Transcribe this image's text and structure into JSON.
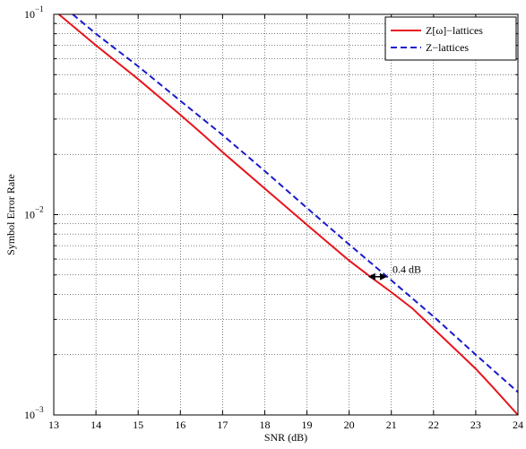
{
  "chart_data": {
    "type": "line",
    "title": "",
    "xlabel": "SNR (dB)",
    "ylabel": "Symbol Error Rate",
    "xlim": [
      13,
      24
    ],
    "ylim": [
      0.001,
      0.1
    ],
    "yscale": "log",
    "grid": true,
    "grid_style": "dotted",
    "legend_position": "top-right",
    "x_ticks": [
      13,
      14,
      15,
      16,
      17,
      18,
      19,
      20,
      21,
      22,
      23,
      24
    ],
    "x_tick_labels": [
      "13",
      "14",
      "15",
      "16",
      "17",
      "18",
      "19",
      "20",
      "21",
      "22",
      "23",
      "24"
    ],
    "y_ticks": [
      {
        "value": 0.001,
        "base": "10",
        "exp": "−3"
      },
      {
        "value": 0.01,
        "base": "10",
        "exp": "−2"
      },
      {
        "value": 0.1,
        "base": "10",
        "exp": "−1"
      }
    ],
    "series": [
      {
        "name": "Z[ω]−lattices",
        "color": "#e8141c",
        "style": "solid",
        "x": [
          13.12,
          14,
          15,
          16,
          16.5,
          17,
          18,
          19,
          20,
          20.5,
          21,
          21.5,
          22,
          23,
          23.4,
          24
        ],
        "y": [
          0.1,
          0.07,
          0.0475,
          0.0315,
          0.0255,
          0.0205,
          0.0135,
          0.0089,
          0.0059,
          0.0049,
          0.0041,
          0.0034,
          0.0027,
          0.0017,
          0.00138,
          0.001
        ]
      },
      {
        "name": "Z−lattices",
        "color": "#1a1acc",
        "style": "dashed",
        "x": [
          13.45,
          14,
          15,
          16,
          17,
          18,
          19,
          20,
          21,
          22,
          23,
          24
        ],
        "y": [
          0.1,
          0.08,
          0.055,
          0.037,
          0.025,
          0.0165,
          0.0108,
          0.0071,
          0.0047,
          0.0031,
          0.002,
          0.0013
        ]
      }
    ],
    "annotations": [
      {
        "text": "0.4 dB",
        "x_from": 20.45,
        "x_to": 20.9,
        "y": 0.0049
      }
    ]
  }
}
